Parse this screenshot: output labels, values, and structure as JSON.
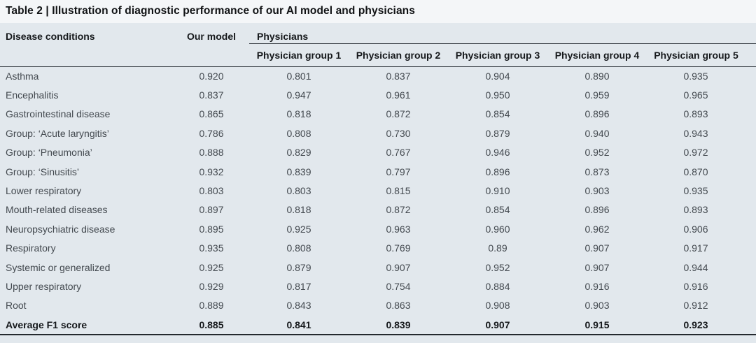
{
  "title": "Table 2 | Illustration of diagnostic performance of our AI model and physicians",
  "table": {
    "headers": {
      "disease": "Disease conditions",
      "our_model": "Our model",
      "physicians": "Physicians",
      "physician_groups": [
        "Physician group 1",
        "Physician group 2",
        "Physician group 3",
        "Physician group 4",
        "Physician group 5"
      ]
    },
    "rows": [
      {
        "label": "Asthma",
        "values": [
          "0.920",
          "0.801",
          "0.837",
          "0.904",
          "0.890",
          "0.935"
        ]
      },
      {
        "label": "Encephalitis",
        "values": [
          "0.837",
          "0.947",
          "0.961",
          "0.950",
          "0.959",
          "0.965"
        ]
      },
      {
        "label": "Gastrointestinal disease",
        "values": [
          "0.865",
          "0.818",
          "0.872",
          "0.854",
          "0.896",
          "0.893"
        ]
      },
      {
        "label": "Group: ‘Acute laryngitis’",
        "values": [
          "0.786",
          "0.808",
          "0.730",
          "0.879",
          "0.940",
          "0.943"
        ]
      },
      {
        "label": "Group: ‘Pneumonia’",
        "values": [
          "0.888",
          "0.829",
          "0.767",
          "0.946",
          "0.952",
          "0.972"
        ]
      },
      {
        "label": "Group: ‘Sinusitis’",
        "values": [
          "0.932",
          "0.839",
          "0.797",
          "0.896",
          "0.873",
          "0.870"
        ]
      },
      {
        "label": "Lower respiratory",
        "values": [
          "0.803",
          "0.803",
          "0.815",
          "0.910",
          "0.903",
          "0.935"
        ]
      },
      {
        "label": "Mouth-related diseases",
        "values": [
          "0.897",
          "0.818",
          "0.872",
          "0.854",
          "0.896",
          "0.893"
        ]
      },
      {
        "label": "Neuropsychiatric disease",
        "values": [
          "0.895",
          "0.925",
          "0.963",
          "0.960",
          "0.962",
          "0.906"
        ]
      },
      {
        "label": "Respiratory",
        "values": [
          "0.935",
          "0.808",
          "0.769",
          "0.89",
          "0.907",
          "0.917"
        ]
      },
      {
        "label": "Systemic or generalized",
        "values": [
          "0.925",
          "0.879",
          "0.907",
          "0.952",
          "0.907",
          "0.944"
        ]
      },
      {
        "label": "Upper respiratory",
        "values": [
          "0.929",
          "0.817",
          "0.754",
          "0.884",
          "0.916",
          "0.916"
        ]
      },
      {
        "label": "Root",
        "values": [
          "0.889",
          "0.843",
          "0.863",
          "0.908",
          "0.903",
          "0.912"
        ]
      }
    ],
    "footer": {
      "label": "Average F1 score",
      "values": [
        "0.885",
        "0.841",
        "0.839",
        "0.907",
        "0.915",
        "0.923"
      ]
    }
  },
  "colors": {
    "panel_background": "#e2e8ed",
    "title_background": "#f4f6f8",
    "rule": "#30363c",
    "bottom_rule": "#24292e",
    "header_text": "#15181b",
    "data_text": "#43494f"
  }
}
